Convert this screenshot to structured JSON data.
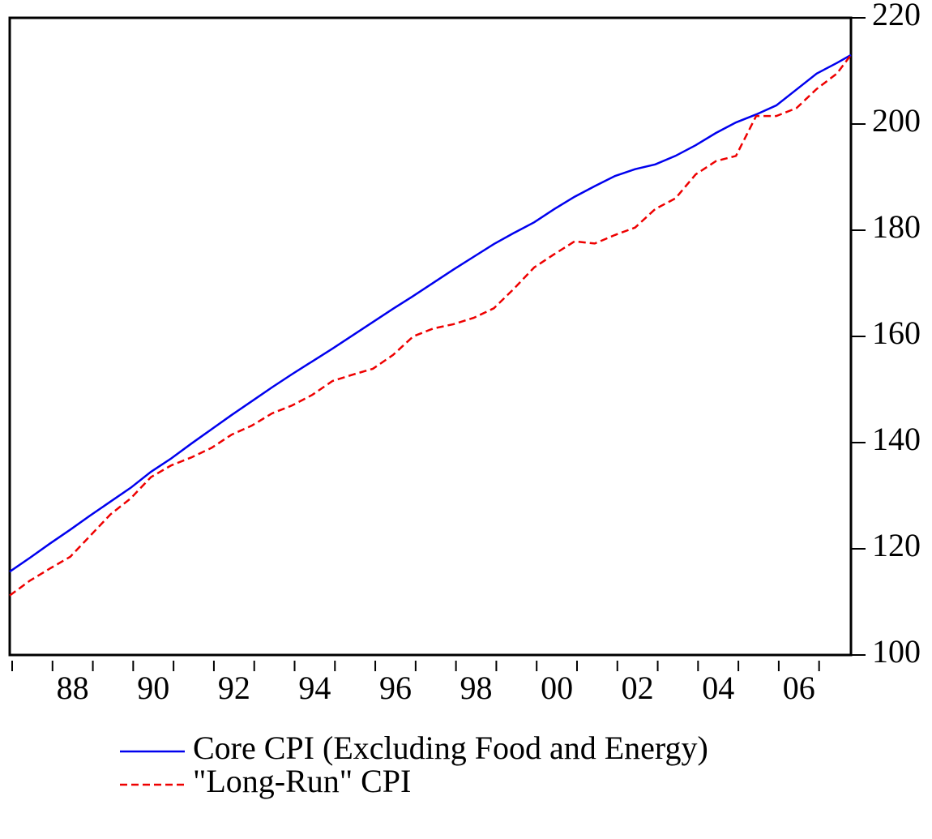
{
  "chart_data": {
    "type": "line",
    "x": [
      1987,
      1987.5,
      1988,
      1988.5,
      1989,
      1989.5,
      1990,
      1990.5,
      1991,
      1991.5,
      1992,
      1992.5,
      1993,
      1993.5,
      1994,
      1994.5,
      1995,
      1995.5,
      1996,
      1996.5,
      1997,
      1997.5,
      1998,
      1998.5,
      1999,
      1999.5,
      2000,
      2000.5,
      2001,
      2001.5,
      2002,
      2002.5,
      2003,
      2003.5,
      2004,
      2004.5,
      2005,
      2005.5,
      2006,
      2006.5,
      2007,
      2007.5,
      2007.85
    ],
    "series": [
      {
        "name": "Core CPI (Excluding Food and Energy)",
        "color": "#0000ee",
        "dash": "solid",
        "values": [
          115.7,
          118.3,
          121.0,
          123.6,
          126.3,
          128.9,
          131.5,
          134.5,
          137.0,
          139.8,
          142.5,
          145.2,
          147.8,
          150.4,
          152.9,
          155.3,
          157.7,
          160.2,
          162.7,
          165.2,
          167.6,
          170.1,
          172.6,
          175.0,
          177.4,
          179.5,
          181.5,
          184.0,
          186.3,
          188.3,
          190.2,
          191.5,
          192.4,
          194.0,
          196.0,
          198.3,
          200.3,
          201.8,
          203.5,
          206.5,
          209.5,
          211.5,
          213.0
        ]
      },
      {
        "name": "\"Long-Run\" CPI",
        "color": "#ee0000",
        "dash": "dashed",
        "values": [
          111.2,
          114.0,
          116.3,
          118.5,
          122.5,
          126.5,
          129.5,
          133.5,
          135.7,
          137.2,
          139.0,
          141.5,
          143.2,
          145.5,
          147.0,
          149.0,
          151.6,
          152.8,
          153.9,
          156.5,
          160.0,
          161.5,
          162.3,
          163.5,
          165.3,
          169.0,
          173.0,
          175.5,
          177.9,
          177.5,
          179.1,
          180.5,
          184.0,
          186.0,
          190.5,
          193.0,
          194.0,
          201.5,
          201.5,
          203.0,
          206.6,
          209.5,
          213.0
        ]
      }
    ],
    "xlim": [
      1987,
      2007.85
    ],
    "xticks": [
      1987,
      1988,
      1989,
      1990,
      1991,
      1992,
      1993,
      1994,
      1995,
      1996,
      1997,
      1998,
      1999,
      2000,
      2001,
      2002,
      2003,
      2004,
      2005,
      2006,
      2007
    ],
    "xtick_labels": [
      {
        "value": 1988,
        "label": "88"
      },
      {
        "value": 1990,
        "label": "90"
      },
      {
        "value": 1992,
        "label": "92"
      },
      {
        "value": 1994,
        "label": "94"
      },
      {
        "value": 1996,
        "label": "96"
      },
      {
        "value": 1998,
        "label": "98"
      },
      {
        "value": 2000,
        "label": "00"
      },
      {
        "value": 2002,
        "label": "02"
      },
      {
        "value": 2004,
        "label": "04"
      },
      {
        "value": 2006,
        "label": "06"
      }
    ],
    "ylim": [
      100,
      220
    ],
    "yticks": [
      100,
      120,
      140,
      160,
      180,
      200,
      220
    ],
    "y_axis_side": "right",
    "legend": "bottom"
  }
}
